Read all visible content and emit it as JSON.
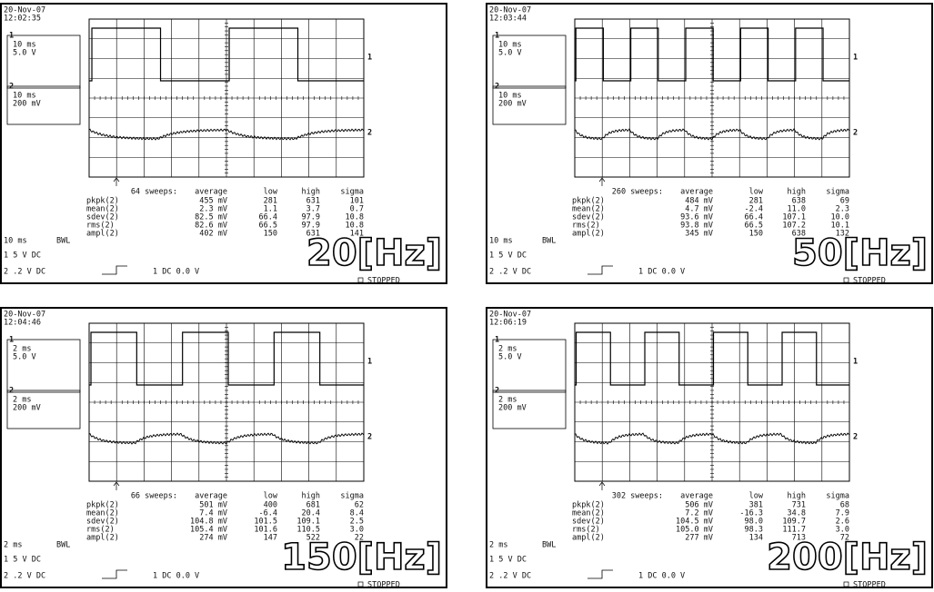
{
  "panels": [
    {
      "date": "20-Nov-07",
      "time": "12:02:35",
      "ch1": {
        "label": "1",
        "time_div": "10 ms",
        "volt_div": "5.0 V"
      },
      "ch2": {
        "label": "2",
        "time_div": "10 ms",
        "volt_div": "200 mV"
      },
      "sweeps": "64 sweeps:",
      "stats_header": [
        "average",
        "low",
        "high",
        "sigma"
      ],
      "stats_rows": [
        [
          "pkpk(2)",
          "455 mV",
          "281",
          "631",
          "101"
        ],
        [
          "mean(2)",
          "2.3 mV",
          "1.1",
          "3.7",
          "0.7"
        ],
        [
          "sdev(2)",
          "82.5 mV",
          "66.4",
          "97.9",
          "10.8"
        ],
        [
          "rms(2)",
          "82.6 mV",
          "66.5",
          "97.9",
          "10.8"
        ],
        [
          "ampl(2)",
          "402 mV",
          "150",
          "631",
          "141"
        ]
      ],
      "timebase": "10 ms",
      "bwl": "BWL",
      "ch1_setting": "1  5  V  DC",
      "ch2_setting": "2  .2  V  DC",
      "trigger": "1  DC 0.0 V",
      "freq_label": "20[Hz]",
      "status": "STOPPED"
    },
    {
      "date": "20-Nov-07",
      "time": "12:03:44",
      "ch1": {
        "label": "1",
        "time_div": "10 ms",
        "volt_div": "5.0 V"
      },
      "ch2": {
        "label": "2",
        "time_div": "10 ms",
        "volt_div": "200 mV"
      },
      "sweeps": "260 sweeps:",
      "stats_header": [
        "average",
        "low",
        "high",
        "sigma"
      ],
      "stats_rows": [
        [
          "pkpk(2)",
          "484 mV",
          "281",
          "638",
          "69"
        ],
        [
          "mean(2)",
          "4.7 mV",
          "-2.4",
          "11.0",
          "2.3"
        ],
        [
          "sdev(2)",
          "93.6 mV",
          "66.4",
          "107.1",
          "10.0"
        ],
        [
          "rms(2)",
          "93.8 mV",
          "66.5",
          "107.2",
          "10.1"
        ],
        [
          "ampl(2)",
          "345 mV",
          "150",
          "638",
          "132"
        ]
      ],
      "timebase": "10 ms",
      "bwl": "BWL",
      "ch1_setting": "1  5  V  DC",
      "ch2_setting": "2  .2  V  DC",
      "trigger": "1  DC 0.0 V",
      "freq_label": "50[Hz]",
      "status": "STOPPED"
    },
    {
      "date": "20-Nov-07",
      "time": "12:04:46",
      "ch1": {
        "label": "1",
        "time_div": "2 ms",
        "volt_div": "5.0 V"
      },
      "ch2": {
        "label": "2",
        "time_div": "2 ms",
        "volt_div": "200 mV"
      },
      "sweeps": "66 sweeps:",
      "stats_header": [
        "average",
        "low",
        "high",
        "sigma"
      ],
      "stats_rows": [
        [
          "pkpk(2)",
          "501 mV",
          "400",
          "681",
          "62"
        ],
        [
          "mean(2)",
          "7.4 mV",
          "-6.4",
          "20.4",
          "8.4"
        ],
        [
          "sdev(2)",
          "104.8 mV",
          "101.5",
          "109.1",
          "2.5"
        ],
        [
          "rms(2)",
          "105.4 mV",
          "101.6",
          "110.5",
          "3.0"
        ],
        [
          "ampl(2)",
          "274 mV",
          "147",
          "522",
          "22"
        ]
      ],
      "timebase": "2 ms",
      "bwl": "BWL",
      "ch1_setting": "1  5  V  DC",
      "ch2_setting": "2  .2  V  DC",
      "trigger": "1  DC 0.0 V",
      "freq_label": "150[Hz]",
      "status": "STOPPED"
    },
    {
      "date": "20-Nov-07",
      "time": "12:06:19",
      "ch1": {
        "label": "1",
        "time_div": "2 ms",
        "volt_div": "5.0 V"
      },
      "ch2": {
        "label": "2",
        "time_div": "2 ms",
        "volt_div": "200 mV"
      },
      "sweeps": "302 sweeps:",
      "stats_header": [
        "average",
        "low",
        "high",
        "sigma"
      ],
      "stats_rows": [
        [
          "pkpk(2)",
          "506 mV",
          "381",
          "731",
          "68"
        ],
        [
          "mean(2)",
          "7.2 mV",
          "-16.3",
          "34.8",
          "7.9"
        ],
        [
          "sdev(2)",
          "104.5 mV",
          "98.0",
          "109.7",
          "2.6"
        ],
        [
          "rms(2)",
          "105.0 mV",
          "98.3",
          "111.7",
          "3.0"
        ],
        [
          "ampl(2)",
          "277 mV",
          "134",
          "713",
          "72"
        ]
      ],
      "timebase": "2 ms",
      "bwl": "BWL",
      "ch1_setting": "1  5  V  DC",
      "ch2_setting": "2  .2  V  DC",
      "trigger": "1  DC 0.0 V",
      "freq_label": "200[Hz]",
      "status": "STOPPED"
    }
  ]
}
